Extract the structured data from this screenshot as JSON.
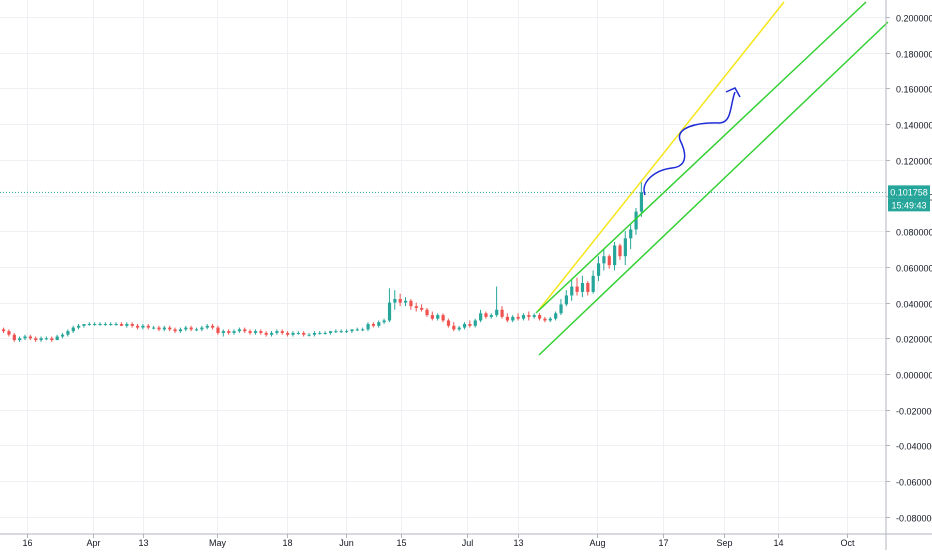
{
  "chart_data": {
    "type": "candlestick",
    "y_ticks": [
      "0.200000",
      "0.180000",
      "0.160000",
      "0.140000",
      "0.120000",
      "0.100000",
      "0.080000",
      "0.060000",
      "0.040000",
      "0.020000",
      "0.000000",
      "-0.020000",
      "-0.040000",
      "-0.060000",
      "-0.080000"
    ],
    "y_tick_values": [
      0.2,
      0.18,
      0.16,
      0.14,
      0.12,
      0.1,
      0.08,
      0.06,
      0.04,
      0.02,
      0.0,
      -0.02,
      -0.04,
      -0.06,
      -0.08
    ],
    "ylim": [
      -0.088,
      0.21
    ],
    "x_ticks": [
      "16",
      "Apr",
      "13",
      "May",
      "18",
      "Jun",
      "15",
      "Jul",
      "13",
      "Aug",
      "17",
      "Sep",
      "14",
      "Oct"
    ],
    "current_price": {
      "value": 0.101758,
      "label": "0.101758",
      "countdown": "15:49:43"
    },
    "colors": {
      "up": "#26a69a",
      "down": "#ef5350",
      "last_line": "#26a69a",
      "yellow_line": "#f5e61a",
      "green_line": "#33d133",
      "arrow": "#1f2bd6"
    },
    "candles": [
      [
        0.025,
        0.026,
        0.023,
        0.024
      ],
      [
        0.024,
        0.025,
        0.021,
        0.022
      ],
      [
        0.022,
        0.023,
        0.018,
        0.019
      ],
      [
        0.019,
        0.021,
        0.018,
        0.02
      ],
      [
        0.02,
        0.022,
        0.019,
        0.021
      ],
      [
        0.021,
        0.022,
        0.019,
        0.02
      ],
      [
        0.02,
        0.021,
        0.018,
        0.019
      ],
      [
        0.019,
        0.021,
        0.018,
        0.02
      ],
      [
        0.02,
        0.021,
        0.019,
        0.02
      ],
      [
        0.02,
        0.021,
        0.018,
        0.019
      ],
      [
        0.019,
        0.022,
        0.019,
        0.021
      ],
      [
        0.021,
        0.023,
        0.02,
        0.022
      ],
      [
        0.022,
        0.025,
        0.021,
        0.024
      ],
      [
        0.024,
        0.027,
        0.023,
        0.026
      ],
      [
        0.026,
        0.028,
        0.025,
        0.027
      ],
      [
        0.027,
        0.028,
        0.026,
        0.028
      ],
      [
        0.028,
        0.029,
        0.027,
        0.028
      ],
      [
        0.028,
        0.029,
        0.027,
        0.028
      ],
      [
        0.028,
        0.029,
        0.027,
        0.028
      ],
      [
        0.028,
        0.029,
        0.027,
        0.028
      ],
      [
        0.028,
        0.029,
        0.027,
        0.028
      ],
      [
        0.028,
        0.029,
        0.027,
        0.028
      ],
      [
        0.028,
        0.029,
        0.027,
        0.027
      ],
      [
        0.027,
        0.029,
        0.026,
        0.028
      ],
      [
        0.028,
        0.029,
        0.026,
        0.027
      ],
      [
        0.027,
        0.028,
        0.025,
        0.026
      ],
      [
        0.026,
        0.028,
        0.025,
        0.027
      ],
      [
        0.027,
        0.028,
        0.025,
        0.026
      ],
      [
        0.026,
        0.027,
        0.025,
        0.026
      ],
      [
        0.026,
        0.027,
        0.024,
        0.025
      ],
      [
        0.025,
        0.027,
        0.024,
        0.026
      ],
      [
        0.026,
        0.027,
        0.024,
        0.025
      ],
      [
        0.025,
        0.026,
        0.023,
        0.024
      ],
      [
        0.024,
        0.026,
        0.023,
        0.025
      ],
      [
        0.025,
        0.027,
        0.024,
        0.026
      ],
      [
        0.026,
        0.027,
        0.024,
        0.025
      ],
      [
        0.025,
        0.026,
        0.024,
        0.025
      ],
      [
        0.025,
        0.027,
        0.024,
        0.026
      ],
      [
        0.026,
        0.028,
        0.025,
        0.027
      ],
      [
        0.027,
        0.028,
        0.025,
        0.026
      ],
      [
        0.026,
        0.027,
        0.022,
        0.023
      ],
      [
        0.023,
        0.025,
        0.021,
        0.024
      ],
      [
        0.024,
        0.025,
        0.022,
        0.023
      ],
      [
        0.023,
        0.025,
        0.022,
        0.024
      ],
      [
        0.024,
        0.026,
        0.023,
        0.025
      ],
      [
        0.025,
        0.026,
        0.023,
        0.024
      ],
      [
        0.024,
        0.025,
        0.022,
        0.023
      ],
      [
        0.023,
        0.025,
        0.022,
        0.024
      ],
      [
        0.024,
        0.025,
        0.022,
        0.023
      ],
      [
        0.023,
        0.024,
        0.021,
        0.022
      ],
      [
        0.022,
        0.024,
        0.021,
        0.023
      ],
      [
        0.023,
        0.025,
        0.022,
        0.024
      ],
      [
        0.024,
        0.025,
        0.022,
        0.023
      ],
      [
        0.023,
        0.024,
        0.021,
        0.022
      ],
      [
        0.022,
        0.024,
        0.021,
        0.023
      ],
      [
        0.023,
        0.024,
        0.022,
        0.023
      ],
      [
        0.023,
        0.024,
        0.021,
        0.022
      ],
      [
        0.022,
        0.023,
        0.021,
        0.022
      ],
      [
        0.022,
        0.024,
        0.021,
        0.023
      ],
      [
        0.023,
        0.024,
        0.022,
        0.023
      ],
      [
        0.023,
        0.024,
        0.022,
        0.023
      ],
      [
        0.023,
        0.024,
        0.022,
        0.024
      ],
      [
        0.024,
        0.025,
        0.023,
        0.024
      ],
      [
        0.024,
        0.025,
        0.023,
        0.024
      ],
      [
        0.024,
        0.025,
        0.023,
        0.024
      ],
      [
        0.024,
        0.025,
        0.023,
        0.025
      ],
      [
        0.025,
        0.026,
        0.024,
        0.025
      ],
      [
        0.025,
        0.026,
        0.024,
        0.025
      ],
      [
        0.025,
        0.029,
        0.024,
        0.028
      ],
      [
        0.028,
        0.029,
        0.026,
        0.027
      ],
      [
        0.027,
        0.03,
        0.026,
        0.029
      ],
      [
        0.029,
        0.031,
        0.028,
        0.03
      ],
      [
        0.03,
        0.048,
        0.029,
        0.04
      ],
      [
        0.04,
        0.047,
        0.036,
        0.042
      ],
      [
        0.042,
        0.045,
        0.038,
        0.04
      ],
      [
        0.04,
        0.043,
        0.038,
        0.041
      ],
      [
        0.041,
        0.042,
        0.036,
        0.038
      ],
      [
        0.038,
        0.04,
        0.035,
        0.037
      ],
      [
        0.037,
        0.039,
        0.035,
        0.036
      ],
      [
        0.036,
        0.037,
        0.032,
        0.033
      ],
      [
        0.033,
        0.035,
        0.03,
        0.031
      ],
      [
        0.031,
        0.034,
        0.03,
        0.033
      ],
      [
        0.033,
        0.034,
        0.029,
        0.03
      ],
      [
        0.03,
        0.031,
        0.026,
        0.027
      ],
      [
        0.027,
        0.029,
        0.024,
        0.025
      ],
      [
        0.025,
        0.027,
        0.024,
        0.026
      ],
      [
        0.026,
        0.029,
        0.025,
        0.028
      ],
      [
        0.028,
        0.03,
        0.026,
        0.027
      ],
      [
        0.027,
        0.031,
        0.026,
        0.03
      ],
      [
        0.03,
        0.036,
        0.029,
        0.034
      ],
      [
        0.034,
        0.035,
        0.031,
        0.032
      ],
      [
        0.032,
        0.034,
        0.031,
        0.033
      ],
      [
        0.033,
        0.049,
        0.032,
        0.036
      ],
      [
        0.036,
        0.038,
        0.031,
        0.032
      ],
      [
        0.032,
        0.034,
        0.029,
        0.03
      ],
      [
        0.03,
        0.033,
        0.029,
        0.032
      ],
      [
        0.032,
        0.034,
        0.03,
        0.031
      ],
      [
        0.031,
        0.034,
        0.03,
        0.033
      ],
      [
        0.033,
        0.035,
        0.03,
        0.032
      ],
      [
        0.032,
        0.034,
        0.031,
        0.033
      ],
      [
        0.033,
        0.034,
        0.03,
        0.031
      ],
      [
        0.031,
        0.032,
        0.029,
        0.03
      ],
      [
        0.03,
        0.032,
        0.029,
        0.031
      ],
      [
        0.031,
        0.035,
        0.03,
        0.034
      ],
      [
        0.034,
        0.042,
        0.033,
        0.039
      ],
      [
        0.039,
        0.047,
        0.038,
        0.044
      ],
      [
        0.044,
        0.053,
        0.041,
        0.049
      ],
      [
        0.049,
        0.054,
        0.044,
        0.046
      ],
      [
        0.046,
        0.055,
        0.043,
        0.051
      ],
      [
        0.051,
        0.052,
        0.044,
        0.046
      ],
      [
        0.046,
        0.058,
        0.045,
        0.055
      ],
      [
        0.055,
        0.066,
        0.052,
        0.062
      ],
      [
        0.062,
        0.07,
        0.058,
        0.066
      ],
      [
        0.066,
        0.067,
        0.059,
        0.061
      ],
      [
        0.061,
        0.074,
        0.058,
        0.072
      ],
      [
        0.072,
        0.073,
        0.064,
        0.066
      ],
      [
        0.066,
        0.08,
        0.061,
        0.076
      ],
      [
        0.076,
        0.084,
        0.07,
        0.081
      ],
      [
        0.081,
        0.093,
        0.078,
        0.091
      ],
      [
        0.091,
        0.108,
        0.088,
        0.101758
      ]
    ]
  }
}
